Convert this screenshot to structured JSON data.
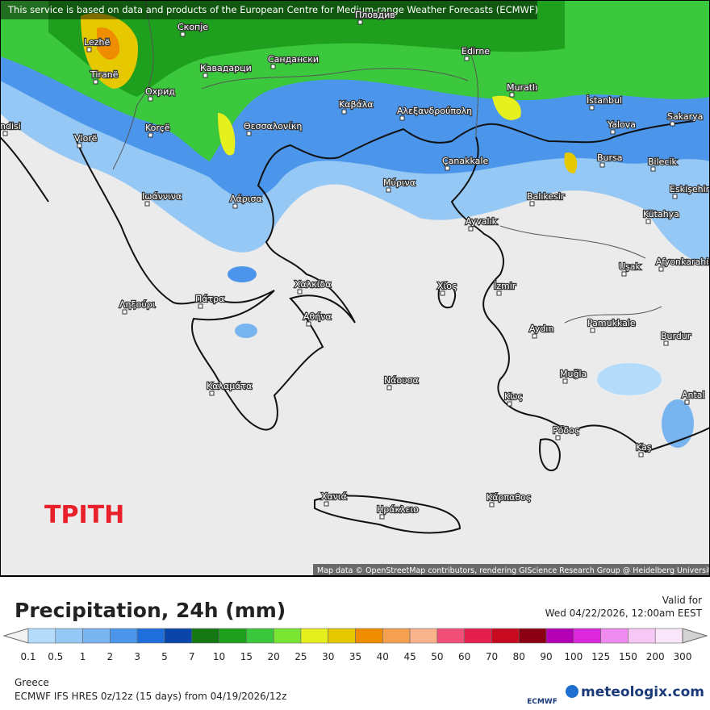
{
  "header": {
    "notice": "This service is based on data and products of the European Centre for Medium-range Weather Forecasts (ECMWF)"
  },
  "map": {
    "day_label": "ΤΡΙΤΗ",
    "attribution": "Map data © OpenStreetMap contributors, rendering GIScience Research Group @ Heidelberg University",
    "cities": [
      "Lezhë",
      "Скопје",
      "Пловдив",
      "Tiranë",
      "Охрид",
      "Кавадарци",
      "Сандански",
      "Edirne",
      "Korçë",
      "Vlorë",
      "ndisi",
      "Θεσσαλονίκη",
      "Καβάλα",
      "Αλεξανδρούπολη",
      "Muratlı",
      "İstanbul",
      "Yalova",
      "Sakarya",
      "Bursa",
      "Bilecik",
      "Çanakkale",
      "Ιωάννινα",
      "Λάρισα",
      "Μύρινα",
      "Balıkesir",
      "Eskişehir",
      "Kütahya",
      "Ayvalık",
      "Uşak",
      "Afyonkarahisar",
      "Χαλκίδα",
      "Χίος",
      "İzmir",
      "Ληξούρι",
      "Πάτρα",
      "Αθήνα",
      "Aydın",
      "Pamukkale",
      "Burdur",
      "Muğla",
      "Καλαμάτα",
      "Νάουσα",
      "Κως",
      "Antal",
      "Ρόδος",
      "Kaş",
      "Χανιά",
      "Ηράκλειο",
      "Κάρπαθος"
    ]
  },
  "legend": {
    "title": "Precipitation, 24h (mm)",
    "valid_label": "Valid for",
    "valid_time": "Wed 04/22/2026, 12:00am EEST",
    "ticks": [
      0.1,
      0.5,
      1,
      2,
      3,
      5,
      7,
      10,
      15,
      20,
      25,
      30,
      35,
      40,
      45,
      50,
      60,
      70,
      80,
      90,
      100,
      125,
      150,
      200,
      300
    ],
    "colors": [
      "#f2f2f2",
      "#b4dcfa",
      "#96c8f5",
      "#78b4f0",
      "#4b96eb",
      "#1e6edc",
      "#0a46aa",
      "#147814",
      "#1ea01e",
      "#3cc83c",
      "#78e632",
      "#e6f01e",
      "#e6c800",
      "#f08c00",
      "#f5a050",
      "#fab48c",
      "#f05078",
      "#e61e50",
      "#c80a1e",
      "#8c0014",
      "#b400b4",
      "#dc28dc",
      "#f08cf0",
      "#f5c8f5",
      "#fae6fa",
      "#d2d2d2"
    ]
  },
  "footer": {
    "region": "Greece",
    "model": "ECMWF IFS HRES 0z/12z (15 days) from 04/19/2026/12z",
    "ecmwf": "ECMWF",
    "brand": "meteologix.com"
  }
}
